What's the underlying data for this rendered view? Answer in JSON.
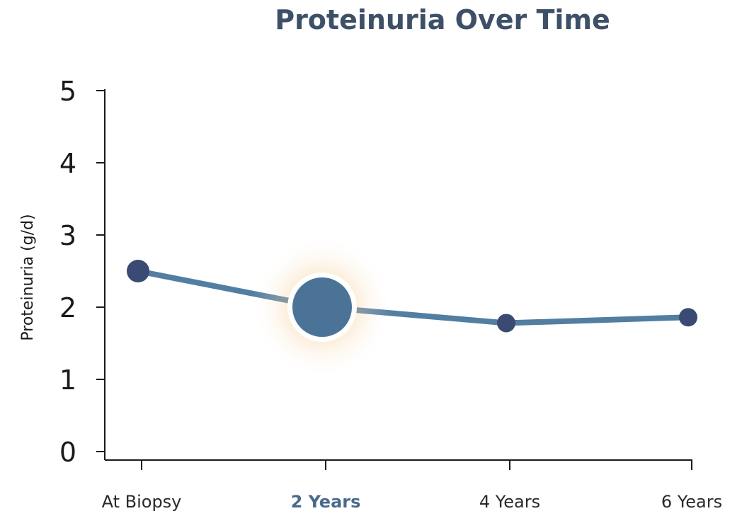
{
  "chart_data": {
    "type": "line",
    "title": "Proteinuria Over Time",
    "xlabel": "",
    "ylabel": "Proteinuria (g/d)",
    "categories": [
      "At Biopsy",
      "2 Years",
      "4 Years",
      "6 Years"
    ],
    "values": [
      2.5,
      2.0,
      1.78,
      1.86
    ],
    "highlighted_category": "2 Years",
    "ylim": [
      0,
      5
    ],
    "yticks": [
      0,
      1,
      2,
      3,
      4,
      5
    ],
    "grid": false,
    "legend": "none"
  },
  "colors": {
    "line": "#527ea2",
    "point": "#3b4a72",
    "highlight_point": "#4b7398",
    "highlight_glow": "#f3b25a",
    "title": "#3d5068",
    "axis": "#1a1a1a"
  }
}
